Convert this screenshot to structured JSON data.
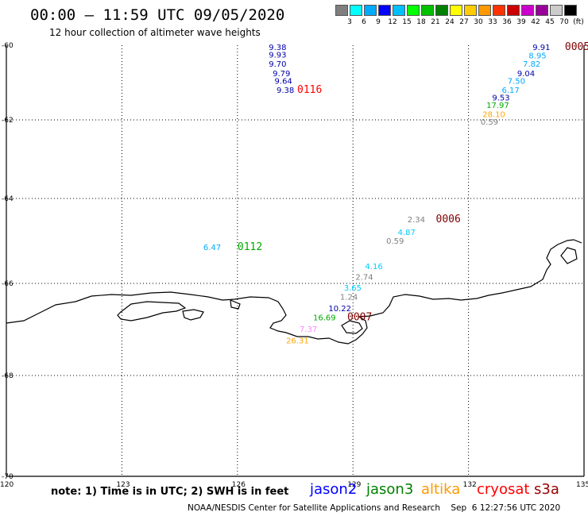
{
  "title": "00:00 – 11:59 UTC 09/05/2020",
  "subtitle": "12 hour collection of altimeter wave heights",
  "legend": {
    "colors": [
      "#7f7f7f",
      "#00ffff",
      "#00aaff",
      "#0000ff",
      "#00bfff",
      "#00ff00",
      "#00c000",
      "#007f00",
      "#ffff00",
      "#ffcc00",
      "#ff9900",
      "#ff3300",
      "#cc0000",
      "#cc00cc",
      "#990099",
      "#cccccc",
      "#000000"
    ],
    "ticks": [
      "3",
      "6",
      "9",
      "12",
      "15",
      "18",
      "21",
      "24",
      "27",
      "30",
      "33",
      "36",
      "39",
      "42",
      "45",
      "70",
      "(ft)"
    ]
  },
  "axes": {
    "y_labels": [
      "-60",
      "-62",
      "-64",
      "-66",
      "-68",
      "-70"
    ],
    "x_labels": [
      "120",
      "123",
      "126",
      "129",
      "132",
      "135"
    ]
  },
  "labels": [
    {
      "text": "9.38",
      "color": "#0000aa",
      "lon": 127.0,
      "lat": -60.0
    },
    {
      "text": "9.93",
      "color": "#0000aa",
      "lon": 127.0,
      "lat": -60.2
    },
    {
      "text": "9.70",
      "color": "#0000aa",
      "lon": 127.0,
      "lat": -60.45
    },
    {
      "text": "9.79",
      "color": "#0000aa",
      "lon": 127.1,
      "lat": -60.7
    },
    {
      "text": "9.64",
      "color": "#0000aa",
      "lon": 127.15,
      "lat": -60.9
    },
    {
      "text": "9.38",
      "color": "#0000aa",
      "lon": 127.2,
      "lat": -61.15
    },
    {
      "text": "0116",
      "color": "#ff0000",
      "lon": 127.8,
      "lat": -61.15,
      "big": true
    },
    {
      "text": "9.91",
      "color": "#0000aa",
      "lon": 133.85,
      "lat": -60.0
    },
    {
      "text": "0005",
      "color": "#7f0000",
      "lon": 134.75,
      "lat": -60.0,
      "big": true
    },
    {
      "text": "8.95",
      "color": "#00aaff",
      "lon": 133.75,
      "lat": -60.22
    },
    {
      "text": "7.82",
      "color": "#00aaff",
      "lon": 133.6,
      "lat": -60.45
    },
    {
      "text": "9.04",
      "color": "#0000aa",
      "lon": 133.45,
      "lat": -60.7
    },
    {
      "text": "7.50",
      "color": "#00aaff",
      "lon": 133.2,
      "lat": -60.9
    },
    {
      "text": "6.17",
      "color": "#00aaff",
      "lon": 133.05,
      "lat": -61.15
    },
    {
      "text": "9.53",
      "color": "#0000aa",
      "lon": 132.8,
      "lat": -61.35
    },
    {
      "text": "17.97",
      "color": "#00aa00",
      "lon": 132.65,
      "lat": -61.55
    },
    {
      "text": "28.10",
      "color": "#ffa500",
      "lon": 132.55,
      "lat": -61.8
    },
    {
      "text": "0.59",
      "color": "#7f7f7f",
      "lon": 132.5,
      "lat": -62.0
    },
    {
      "text": "2.34",
      "color": "#7f7f7f",
      "lon": 130.6,
      "lat": -64.45
    },
    {
      "text": "0006",
      "color": "#7f0000",
      "lon": 131.4,
      "lat": -64.45,
      "big": true
    },
    {
      "text": "4.87",
      "color": "#00ccff",
      "lon": 130.35,
      "lat": -64.75
    },
    {
      "text": "0.59",
      "color": "#7f7f7f",
      "lon": 130.05,
      "lat": -64.95
    },
    {
      "text": "6.47",
      "color": "#00aaff",
      "lon": 125.3,
      "lat": -65.1
    },
    {
      "text": "0112",
      "color": "#00aa00",
      "lon": 126.25,
      "lat": -65.1,
      "big": true
    },
    {
      "text": "4.16",
      "color": "#00ccff",
      "lon": 129.5,
      "lat": -65.55
    },
    {
      "text": "2.74",
      "color": "#7f7f7f",
      "lon": 129.25,
      "lat": -65.8
    },
    {
      "text": "3.65",
      "color": "#00ccff",
      "lon": 128.95,
      "lat": -66.05
    },
    {
      "text": "1.24",
      "color": "#7f7f7f",
      "lon": 128.85,
      "lat": -66.25
    },
    {
      "text": "10.22",
      "color": "#0000aa",
      "lon": 128.55,
      "lat": -66.5
    },
    {
      "text": "0007",
      "color": "#7f0000",
      "lon": 129.1,
      "lat": -66.7,
      "big": true
    },
    {
      "text": "16.69",
      "color": "#00aa00",
      "lon": 128.15,
      "lat": -66.7
    },
    {
      "text": "7.37",
      "color": "#ff88ff",
      "lon": 127.8,
      "lat": -66.95
    },
    {
      "text": "26.31",
      "color": "#ffa500",
      "lon": 127.45,
      "lat": -67.2
    }
  ],
  "note": "note: 1) Time is in UTC; 2) SWH is in feet",
  "satellites": [
    {
      "name": "jason2",
      "color": "#0000ff"
    },
    {
      "name": "jason3",
      "color": "#008000"
    },
    {
      "name": "altika",
      "color": "#ff9900"
    },
    {
      "name": "cryosat",
      "color": "#ff0000"
    },
    {
      "name": "s3a",
      "color": "#990000"
    }
  ],
  "credit": "NOAA/NESDIS Center for Satellite Applications and Research    Sep  6 12:27:56 UTC 2020"
}
